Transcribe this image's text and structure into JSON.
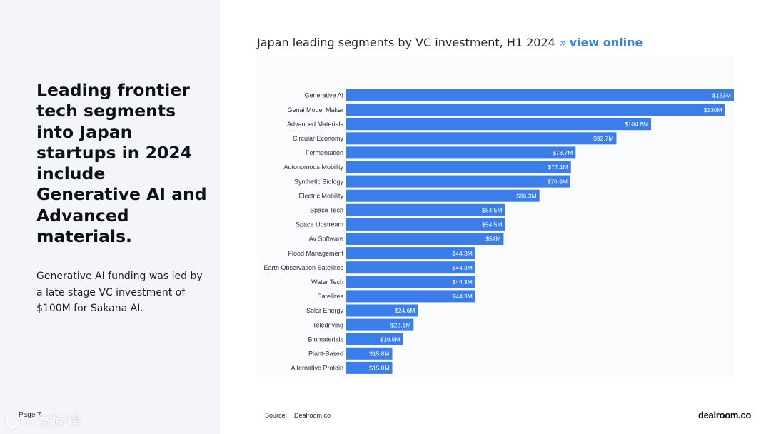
{
  "left_panel": {
    "headline": "Leading frontier tech segments into Japan startups in 2024 include Generative AI and Advanced materials.",
    "subtext": "Generative AI funding was led by a late stage VC investment of $100M for Sakana AI.",
    "page_label": "Page 7",
    "watermark": "大数跨境"
  },
  "chart_header": {
    "title": "Japan leading segments by VC investment, H1 2024",
    "separator": "»",
    "link_label": "view online",
    "link_color": "#3b7de9"
  },
  "chart_data": {
    "type": "bar",
    "orientation": "horizontal",
    "bar_color": "#3b7de9",
    "categories": [
      "Generative AI",
      "Genai Model Maker",
      "Advanced Materials",
      "Circular Economy",
      "Fermentation",
      "Autonomous Mobility",
      "Synthetic Biology",
      "Electric Mobility",
      "Space Tech",
      "Space Upstream",
      "Av Software",
      "Flood Management",
      "Earth Observation Satellites",
      "Water Tech",
      "Satellites",
      "Solar Energy",
      "Teledriving",
      "Biomaterials",
      "Plant-Based",
      "Alternative Protein"
    ],
    "values": [
      133,
      130,
      104.6,
      92.7,
      78.7,
      77.1,
      76.9,
      66.3,
      54.5,
      54.5,
      54,
      44.3,
      44.3,
      44.3,
      44.3,
      24.6,
      23.1,
      19.5,
      15.8,
      15.8
    ],
    "labels": [
      "$133M",
      "$130M",
      "$104.6M",
      "$92.7M",
      "$78.7M",
      "$77.1M",
      "$76.9M",
      "$66.3M",
      "$54.5M",
      "$54.5M",
      "$54M",
      "$44.3M",
      "$44.3M",
      "$44.3M",
      "$44.3M",
      "$24.6M",
      "$23.1M",
      "$19.5M",
      "$15.8M",
      "$15.8M"
    ],
    "xlim": [
      0,
      133
    ],
    "grid": false,
    "legend": "none"
  },
  "footer": {
    "source_label": "Source:",
    "source_value": "Dealroom.co",
    "brand": "dealroom.co"
  }
}
